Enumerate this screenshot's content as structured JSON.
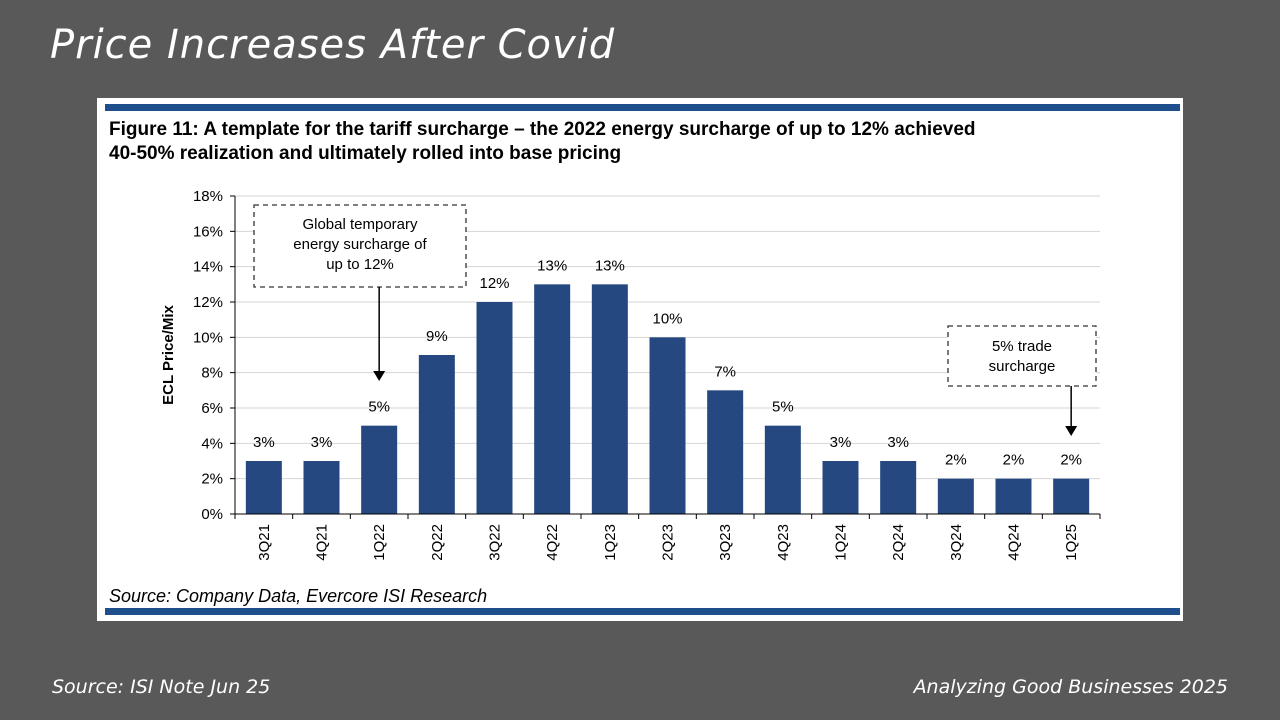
{
  "slide": {
    "title": "Price Increases After Covid",
    "footer_left": "Source: ISI Note Jun 25",
    "footer_right": "Analyzing Good Businesses 2025"
  },
  "figure": {
    "title_line1": "Figure 11: A template for the tariff surcharge – the 2022 energy surcharge of up to 12% achieved",
    "title_line2": "40-50% realization and ultimately rolled into base pricing",
    "source": "Source: Company Data, Evercore ISI Research"
  },
  "chart_data": {
    "type": "bar",
    "ylabel": "ECL Price/Mix",
    "xlabel": "",
    "categories": [
      "3Q21",
      "4Q21",
      "1Q22",
      "2Q22",
      "3Q22",
      "4Q22",
      "1Q23",
      "2Q23",
      "3Q23",
      "4Q23",
      "1Q24",
      "2Q24",
      "3Q24",
      "4Q24",
      "1Q25"
    ],
    "values": [
      3,
      3,
      5,
      9,
      12,
      13,
      13,
      10,
      7,
      5,
      3,
      3,
      2,
      2,
      2
    ],
    "data_labels": [
      "3%",
      "3%",
      "5%",
      "9%",
      "12%",
      "13%",
      "13%",
      "10%",
      "7%",
      "5%",
      "3%",
      "3%",
      "2%",
      "2%",
      "2%"
    ],
    "ylim": [
      0,
      18
    ],
    "yticks": [
      "0%",
      "2%",
      "4%",
      "6%",
      "8%",
      "10%",
      "12%",
      "14%",
      "16%",
      "18%"
    ],
    "grid": true,
    "bar_color": "#24487f",
    "annotations": [
      {
        "lines": [
          "Global temporary",
          "energy surcharge of",
          "up to 12%"
        ],
        "points_to": "1Q22"
      },
      {
        "lines": [
          "5% trade",
          "surcharge"
        ],
        "points_to": "1Q25"
      }
    ]
  }
}
